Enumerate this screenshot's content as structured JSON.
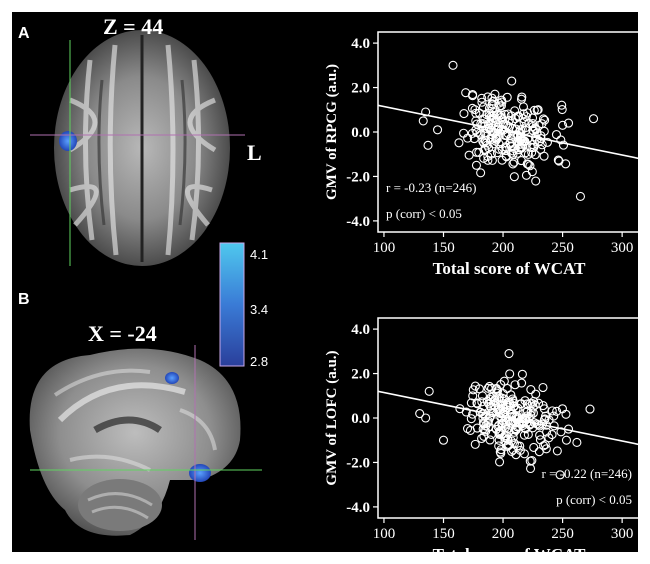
{
  "panels": {
    "a_label": "A",
    "b_label": "B",
    "a_slice": "Z = 44",
    "b_slice": "X = -24",
    "orientation": "L",
    "colorbar": {
      "max": "4.1",
      "mid": "3.4",
      "min": "2.8",
      "colors": [
        "#2a3f9b",
        "#3a7bd6",
        "#4fc8ee"
      ]
    }
  },
  "chart_data": [
    {
      "type": "scatter",
      "ylabel": "GMV of RPCG (a.u.)",
      "xlabel": "Total score of WCAT",
      "xlim": [
        95,
        315
      ],
      "ylim": [
        -4.5,
        4.5
      ],
      "xticks": [
        "100",
        "150",
        "200",
        "250",
        "300"
      ],
      "yticks": [
        "4.0",
        "2.0",
        "0.0",
        "-2.0",
        "-4.0"
      ],
      "stats_r": "r = -0.23 (n=246)",
      "stats_p": "p (corr) < 0.05",
      "fit": {
        "x0": 95,
        "y0": 1.2,
        "x1": 315,
        "y1": -1.2
      },
      "n_points": 246,
      "x_center": 203,
      "x_spread": 20,
      "y_spread": 0.85,
      "outliers": [
        [
          158,
          3.0
        ],
        [
          135,
          0.9
        ],
        [
          133,
          0.5
        ],
        [
          137,
          -0.6
        ],
        [
          265,
          -2.9
        ],
        [
          276,
          0.6
        ],
        [
          255,
          0.4
        ],
        [
          250,
          0.3
        ],
        [
          145,
          0.1
        ]
      ],
      "seed": 11
    },
    {
      "type": "scatter",
      "ylabel": "GMV of LOFC (a.u.)",
      "xlabel": "Total score of WCAT",
      "xlim": [
        95,
        315
      ],
      "ylim": [
        -4.5,
        4.5
      ],
      "xticks": [
        "100",
        "150",
        "200",
        "250",
        "300"
      ],
      "yticks": [
        "4.0",
        "2.0",
        "0.0",
        "-2.0",
        "-4.0"
      ],
      "stats_r": "r = -0.22 (n=246)",
      "stats_p": "p (corr) < 0.05",
      "fit": {
        "x0": 95,
        "y0": 1.2,
        "x1": 315,
        "y1": -1.2
      },
      "n_points": 246,
      "x_center": 203,
      "x_spread": 19,
      "y_spread": 0.8,
      "outliers": [
        [
          138,
          1.2
        ],
        [
          130,
          0.2
        ],
        [
          135,
          0.0
        ],
        [
          150,
          -1.0
        ],
        [
          273,
          0.4
        ],
        [
          262,
          -1.1
        ],
        [
          255,
          -0.5
        ],
        [
          245,
          0.3
        ],
        [
          205,
          2.9
        ]
      ],
      "seed": 29
    }
  ]
}
